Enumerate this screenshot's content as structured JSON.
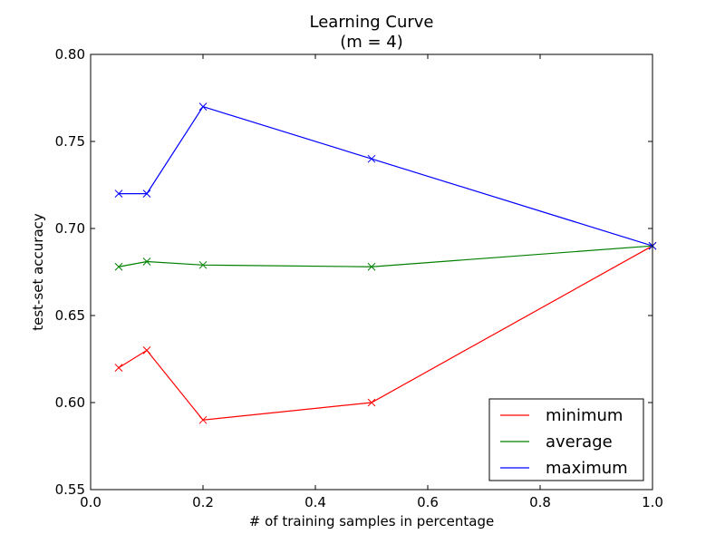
{
  "chart_data": {
    "type": "line",
    "title": "Learning Curve",
    "subtitle": "(m = 4)",
    "xlabel": "# of training samples in percentage",
    "ylabel": "test-set accuracy",
    "xlim": [
      0.0,
      1.0
    ],
    "ylim": [
      0.55,
      0.8
    ],
    "xticks": [
      0.0,
      0.2,
      0.4,
      0.6,
      0.8,
      1.0
    ],
    "xtick_labels": [
      "0.0",
      "0.2",
      "0.4",
      "0.6",
      "0.8",
      "1.0"
    ],
    "yticks": [
      0.55,
      0.6,
      0.65,
      0.7,
      0.75,
      0.8
    ],
    "ytick_labels": [
      "0.55",
      "0.60",
      "0.65",
      "0.70",
      "0.75",
      "0.80"
    ],
    "grid": false,
    "legend_position": "bottom-right",
    "marker": "x",
    "x": [
      0.05,
      0.1,
      0.2,
      0.5,
      1.0
    ],
    "series": [
      {
        "name": "minimum",
        "color": "#ff0000",
        "values": [
          0.62,
          0.63,
          0.59,
          0.6,
          0.69
        ]
      },
      {
        "name": "average",
        "color": "#008000",
        "values": [
          0.678,
          0.681,
          0.679,
          0.678,
          0.69
        ]
      },
      {
        "name": "maximum",
        "color": "#0000ff",
        "values": [
          0.72,
          0.72,
          0.77,
          0.74,
          0.69
        ]
      }
    ]
  }
}
